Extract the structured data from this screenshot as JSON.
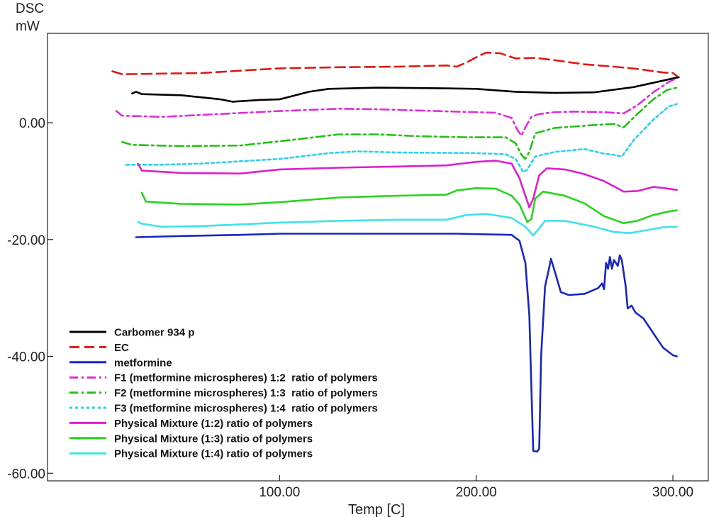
{
  "chart_data": {
    "type": "line",
    "title": "",
    "ylabel_line1": "DSC",
    "ylabel_line2": "mW",
    "xlabel": "Temp  [C]",
    "xlim": [
      -18,
      318
    ],
    "ylim": [
      -61.3,
      15.3
    ],
    "x_ticks": [
      {
        "value": 100,
        "label": "100.00"
      },
      {
        "value": 200,
        "label": "200.00"
      },
      {
        "value": 300,
        "label": "300.00"
      }
    ],
    "y_ticks": [
      {
        "value": 0,
        "label": "0.00"
      },
      {
        "value": -20,
        "label": "-20.00"
      },
      {
        "value": -40,
        "label": "-40.00"
      },
      {
        "value": -60,
        "label": "-60.00"
      }
    ],
    "legend_position": "bottom-left",
    "series": [
      {
        "name": "Carbomer 934 p",
        "color": "#000000",
        "dash": "solid",
        "points": [
          [
            25,
            5.0
          ],
          [
            27,
            5.3
          ],
          [
            30,
            4.9
          ],
          [
            50,
            4.7
          ],
          [
            70,
            4.0
          ],
          [
            76,
            3.6
          ],
          [
            90,
            3.9
          ],
          [
            100,
            4.0
          ],
          [
            115,
            5.3
          ],
          [
            125,
            5.8
          ],
          [
            150,
            6.0
          ],
          [
            180,
            5.9
          ],
          [
            200,
            5.8
          ],
          [
            220,
            5.3
          ],
          [
            240,
            5.1
          ],
          [
            260,
            5.2
          ],
          [
            280,
            6.1
          ],
          [
            295,
            7.2
          ],
          [
            303,
            7.8
          ]
        ]
      },
      {
        "name": "EC",
        "color": "#dd1b12",
        "dash": "dashed",
        "points": [
          [
            15,
            8.8
          ],
          [
            20,
            8.3
          ],
          [
            40,
            8.4
          ],
          [
            60,
            8.5
          ],
          [
            80,
            8.9
          ],
          [
            100,
            9.3
          ],
          [
            130,
            9.5
          ],
          [
            160,
            9.6
          ],
          [
            185,
            9.8
          ],
          [
            190,
            9.6
          ],
          [
            195,
            10.3
          ],
          [
            200,
            11.2
          ],
          [
            205,
            12.0
          ],
          [
            212,
            11.9
          ],
          [
            220,
            11.0
          ],
          [
            230,
            11.1
          ],
          [
            240,
            10.7
          ],
          [
            255,
            10.0
          ],
          [
            270,
            9.6
          ],
          [
            282,
            9.2
          ],
          [
            295,
            8.6
          ],
          [
            300,
            8.5
          ],
          [
            302,
            8.0
          ]
        ]
      },
      {
        "name": "metformine",
        "color": "#1a26c2",
        "dash": "solid",
        "points": [
          [
            27,
            -19.6
          ],
          [
            50,
            -19.4
          ],
          [
            80,
            -19.2
          ],
          [
            100,
            -19.0
          ],
          [
            150,
            -19.0
          ],
          [
            190,
            -19.0
          ],
          [
            218,
            -19.2
          ],
          [
            222,
            -20.2
          ],
          [
            225,
            -24.0
          ],
          [
            227,
            -33.0
          ],
          [
            228,
            -45.0
          ],
          [
            229,
            -56.2
          ],
          [
            231,
            -56.3
          ],
          [
            232,
            -55.8
          ],
          [
            233,
            -40.0
          ],
          [
            235,
            -28.0
          ],
          [
            237,
            -25.0
          ],
          [
            238,
            -23.3
          ],
          [
            240,
            -25.5
          ],
          [
            243,
            -29.0
          ],
          [
            247,
            -29.5
          ],
          [
            255,
            -29.3
          ],
          [
            262,
            -28.3
          ],
          [
            264,
            -27.5
          ],
          [
            265,
            -28.5
          ],
          [
            266,
            -24.0
          ],
          [
            267,
            -25.0
          ],
          [
            268,
            -23.0
          ],
          [
            269,
            -25.0
          ],
          [
            270,
            -23.5
          ],
          [
            272,
            -24.5
          ],
          [
            273,
            -22.7
          ],
          [
            274,
            -23.5
          ],
          [
            276,
            -28.0
          ],
          [
            277,
            -31.8
          ],
          [
            279,
            -31.3
          ],
          [
            281,
            -32.5
          ],
          [
            285,
            -33.5
          ],
          [
            290,
            -36.0
          ],
          [
            295,
            -38.5
          ],
          [
            300,
            -39.8
          ],
          [
            302,
            -40.0
          ]
        ]
      },
      {
        "name": "F1 (metformine microspheres) 1:2  ratio of polymers",
        "color": "#dd2edb",
        "dash": "dashdot",
        "points": [
          [
            17,
            2.0
          ],
          [
            20,
            1.2
          ],
          [
            40,
            1.0
          ],
          [
            70,
            1.5
          ],
          [
            100,
            2.0
          ],
          [
            130,
            2.4
          ],
          [
            150,
            2.3
          ],
          [
            180,
            2.0
          ],
          [
            210,
            1.7
          ],
          [
            218,
            0.8
          ],
          [
            221,
            -1.3
          ],
          [
            223,
            -2.2
          ],
          [
            225,
            -0.8
          ],
          [
            228,
            1.0
          ],
          [
            232,
            1.5
          ],
          [
            240,
            1.8
          ],
          [
            250,
            1.9
          ],
          [
            265,
            1.8
          ],
          [
            275,
            1.6
          ],
          [
            282,
            3.0
          ],
          [
            290,
            5.2
          ],
          [
            298,
            7.0
          ],
          [
            302,
            7.6
          ]
        ]
      },
      {
        "name": "F2 (metformine microspheres) 1:3  ratio of polymers",
        "color": "#22c214",
        "dash": "dashdot",
        "points": [
          [
            20,
            -3.3
          ],
          [
            25,
            -3.8
          ],
          [
            50,
            -4.0
          ],
          [
            80,
            -3.9
          ],
          [
            110,
            -2.8
          ],
          [
            130,
            -2.0
          ],
          [
            150,
            -2.0
          ],
          [
            170,
            -2.3
          ],
          [
            195,
            -2.5
          ],
          [
            215,
            -2.5
          ],
          [
            220,
            -3.5
          ],
          [
            223,
            -5.5
          ],
          [
            225,
            -6.2
          ],
          [
            227,
            -5.0
          ],
          [
            230,
            -1.8
          ],
          [
            240,
            -0.9
          ],
          [
            260,
            -0.4
          ],
          [
            270,
            -0.2
          ],
          [
            275,
            -0.8
          ],
          [
            282,
            1.5
          ],
          [
            290,
            4.0
          ],
          [
            297,
            5.6
          ],
          [
            302,
            6.0
          ]
        ]
      },
      {
        "name": "F3 (metformine microspheres) 1:4  ratio of polymers",
        "color": "#27d2f0",
        "dash": "dotted",
        "points": [
          [
            22,
            -7.2
          ],
          [
            40,
            -7.2
          ],
          [
            60,
            -7.0
          ],
          [
            100,
            -6.2
          ],
          [
            125,
            -5.2
          ],
          [
            140,
            -4.9
          ],
          [
            160,
            -5.1
          ],
          [
            200,
            -5.2
          ],
          [
            215,
            -5.4
          ],
          [
            220,
            -6.2
          ],
          [
            224,
            -8.5
          ],
          [
            226,
            -8.0
          ],
          [
            230,
            -5.8
          ],
          [
            240,
            -5.0
          ],
          [
            255,
            -4.5
          ],
          [
            265,
            -5.3
          ],
          [
            270,
            -5.5
          ],
          [
            274,
            -5.8
          ],
          [
            280,
            -3.0
          ],
          [
            290,
            0.5
          ],
          [
            298,
            2.8
          ],
          [
            302,
            3.2
          ]
        ]
      },
      {
        "name": "Physical Mixture (1:2) ratio of polymers",
        "color": "#dd1ecf",
        "dash": "solid",
        "points": [
          [
            28,
            -7.0
          ],
          [
            30,
            -8.2
          ],
          [
            50,
            -8.6
          ],
          [
            80,
            -8.7
          ],
          [
            100,
            -8.0
          ],
          [
            130,
            -7.7
          ],
          [
            160,
            -7.5
          ],
          [
            185,
            -7.3
          ],
          [
            200,
            -6.7
          ],
          [
            210,
            -6.5
          ],
          [
            218,
            -7.0
          ],
          [
            222,
            -9.5
          ],
          [
            225,
            -12.5
          ],
          [
            227,
            -14.5
          ],
          [
            229,
            -13.0
          ],
          [
            232,
            -9.0
          ],
          [
            236,
            -7.8
          ],
          [
            245,
            -8.0
          ],
          [
            255,
            -8.8
          ],
          [
            265,
            -10.0
          ],
          [
            275,
            -11.8
          ],
          [
            282,
            -11.7
          ],
          [
            290,
            -11.0
          ],
          [
            296,
            -11.2
          ],
          [
            302,
            -11.5
          ]
        ]
      },
      {
        "name": "Physical Mixture (1:3) ratio of polymers",
        "color": "#27d41b",
        "dash": "solid",
        "points": [
          [
            30,
            -12.0
          ],
          [
            32,
            -13.5
          ],
          [
            50,
            -13.9
          ],
          [
            80,
            -14.0
          ],
          [
            100,
            -13.6
          ],
          [
            130,
            -12.8
          ],
          [
            160,
            -12.5
          ],
          [
            185,
            -12.3
          ],
          [
            190,
            -11.6
          ],
          [
            200,
            -11.2
          ],
          [
            210,
            -11.3
          ],
          [
            218,
            -12.5
          ],
          [
            222,
            -14.0
          ],
          [
            226,
            -17.0
          ],
          [
            228,
            -16.5
          ],
          [
            230,
            -13.0
          ],
          [
            234,
            -11.8
          ],
          [
            245,
            -12.5
          ],
          [
            255,
            -13.8
          ],
          [
            265,
            -16.0
          ],
          [
            275,
            -17.2
          ],
          [
            282,
            -16.8
          ],
          [
            290,
            -15.8
          ],
          [
            298,
            -15.2
          ],
          [
            302,
            -15.0
          ]
        ]
      },
      {
        "name": "Physical Mixture (1:4) ratio of polymers",
        "color": "#3de3ea",
        "dash": "solid",
        "points": [
          [
            28,
            -17.0
          ],
          [
            30,
            -17.3
          ],
          [
            40,
            -17.8
          ],
          [
            60,
            -17.7
          ],
          [
            80,
            -17.4
          ],
          [
            100,
            -17.1
          ],
          [
            130,
            -16.8
          ],
          [
            160,
            -16.6
          ],
          [
            185,
            -16.6
          ],
          [
            195,
            -15.8
          ],
          [
            205,
            -15.6
          ],
          [
            218,
            -16.3
          ],
          [
            225,
            -17.8
          ],
          [
            229,
            -19.3
          ],
          [
            231,
            -18.5
          ],
          [
            235,
            -16.8
          ],
          [
            245,
            -16.8
          ],
          [
            260,
            -17.8
          ],
          [
            270,
            -18.7
          ],
          [
            278,
            -18.9
          ],
          [
            285,
            -18.5
          ],
          [
            295,
            -17.9
          ],
          [
            302,
            -17.8
          ]
        ]
      }
    ]
  }
}
